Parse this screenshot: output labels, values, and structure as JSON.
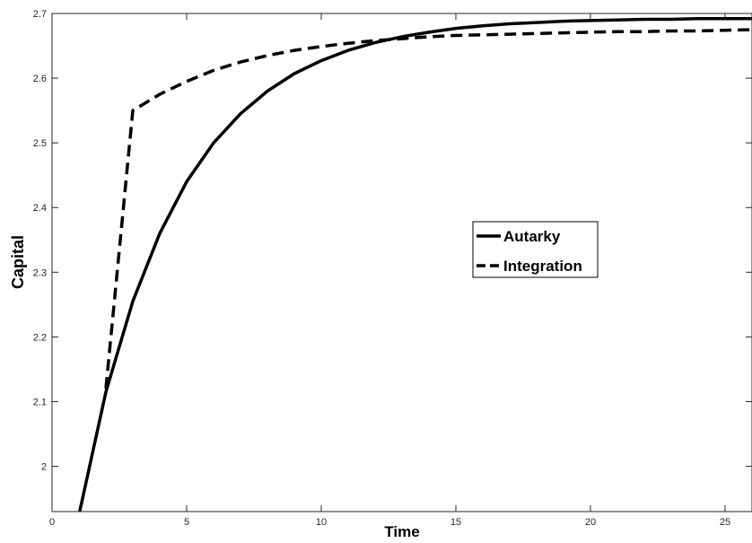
{
  "chart_data": {
    "type": "line",
    "xlabel": "Time",
    "ylabel": "Capital",
    "xlim": [
      0,
      26
    ],
    "ylim": [
      1.93,
      2.7
    ],
    "xticks": [
      0,
      5,
      10,
      15,
      20,
      25
    ],
    "yticks": [
      2,
      2.1,
      2.2,
      2.3,
      2.4,
      2.5,
      2.6,
      2.7
    ],
    "grid": false,
    "legend_position": "center-right",
    "series": [
      {
        "name": "Autarky",
        "style": "solid",
        "color": "#000000",
        "x": [
          1,
          2,
          3,
          4,
          5,
          6,
          7,
          8,
          9,
          10,
          11,
          12,
          13,
          14,
          15,
          16,
          17,
          18,
          19,
          20,
          21,
          22,
          23,
          24,
          25,
          26
        ],
        "y": [
          1.925,
          2.115,
          2.255,
          2.36,
          2.44,
          2.5,
          2.545,
          2.58,
          2.607,
          2.627,
          2.643,
          2.655,
          2.664,
          2.671,
          2.677,
          2.681,
          2.684,
          2.686,
          2.688,
          2.689,
          2.69,
          2.691,
          2.691,
          2.692,
          2.692,
          2.692
        ]
      },
      {
        "name": "Integration",
        "style": "dashed",
        "color": "#000000",
        "x": [
          2,
          3,
          4,
          5,
          6,
          7,
          8,
          9,
          10,
          11,
          12,
          13,
          14,
          15,
          16,
          17,
          18,
          19,
          20,
          21,
          22,
          23,
          24,
          25,
          26
        ],
        "y": [
          2.12,
          2.55,
          2.575,
          2.595,
          2.612,
          2.625,
          2.635,
          2.643,
          2.649,
          2.654,
          2.658,
          2.661,
          2.664,
          2.666,
          2.667,
          2.668,
          2.669,
          2.67,
          2.671,
          2.672,
          2.672,
          2.673,
          2.673,
          2.674,
          2.675
        ]
      }
    ]
  }
}
